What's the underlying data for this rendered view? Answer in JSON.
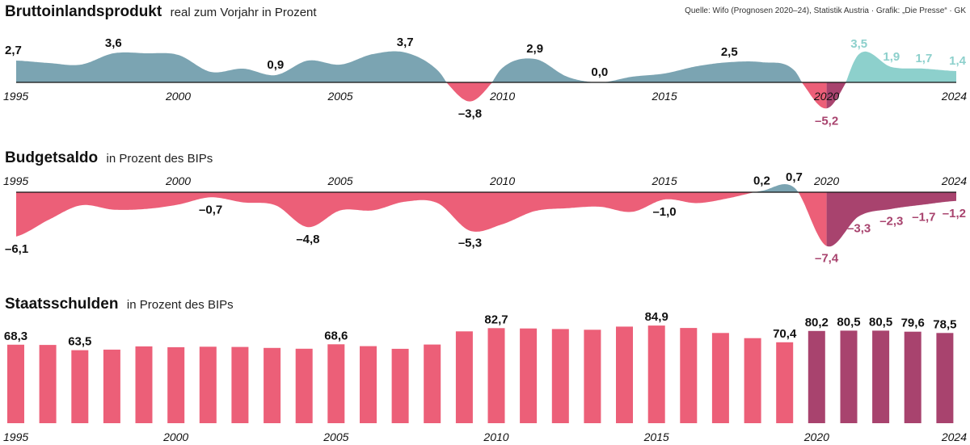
{
  "source": "Quelle: Wifo (Prognosen 2020–24), Statistik Austria · Grafik: „Die Presse“ · GK",
  "colors": {
    "gdp_positive": "#7ba4b2",
    "gdp_negative": "#ec5f78",
    "forecast_positive": "#8dd0cc",
    "forecast_negative": "#a8436e",
    "debt_bar": "#ec5f78",
    "debt_forecast": "#a8436e",
    "axis": "#111111"
  },
  "chart_data": [
    {
      "type": "area",
      "title": "Bruttoinlandsprodukt",
      "subtitle": "real zum Vorjahr in Prozent",
      "xlim": [
        1995,
        2024
      ],
      "ylim": [
        -5.8,
        3.8
      ],
      "xticks": [
        "1995",
        "2000",
        "2005",
        "2010",
        "2015",
        "2020",
        "2024"
      ],
      "forecast_from": 2020,
      "x": [
        1995,
        1996,
        1997,
        1998,
        1999,
        2000,
        2001,
        2002,
        2003,
        2004,
        2005,
        2006,
        2007,
        2008,
        2009,
        2010,
        2011,
        2012,
        2013,
        2014,
        2015,
        2016,
        2017,
        2018,
        2019,
        2020,
        2021,
        2022,
        2023,
        2024
      ],
      "y": [
        2.7,
        2.4,
        2.2,
        3.6,
        3.6,
        3.4,
        1.3,
        1.7,
        0.9,
        2.7,
        2.2,
        3.5,
        3.7,
        1.5,
        -3.8,
        1.8,
        2.9,
        0.7,
        0.0,
        0.7,
        1.1,
        2.0,
        2.5,
        2.5,
        1.5,
        -5.2,
        3.5,
        1.9,
        1.7,
        1.4
      ],
      "point_labels": [
        {
          "x": 1995,
          "y": 2.7,
          "text": "2,7"
        },
        {
          "x": 1998,
          "y": 3.6,
          "text": "3,6"
        },
        {
          "x": 2003,
          "y": 0.9,
          "text": "0,9"
        },
        {
          "x": 2007,
          "y": 3.7,
          "text": "3,7"
        },
        {
          "x": 2009,
          "y": -3.8,
          "text": "–3,8"
        },
        {
          "x": 2011,
          "y": 2.9,
          "text": "2,9"
        },
        {
          "x": 2013,
          "y": 0.0,
          "text": "0,0"
        },
        {
          "x": 2017,
          "y": 2.5,
          "text": "2,5"
        },
        {
          "x": 2020,
          "y": -5.2,
          "text": "–5,2"
        },
        {
          "x": 2021,
          "y": 3.5,
          "text": "3,5"
        },
        {
          "x": 2022,
          "y": 1.9,
          "text": "1,9"
        },
        {
          "x": 2023,
          "y": 1.7,
          "text": "1,7"
        },
        {
          "x": 2024,
          "y": 1.4,
          "text": "1,4"
        }
      ]
    },
    {
      "type": "area",
      "title": "Budgetsaldo",
      "subtitle": "in Prozent des BIPs",
      "xlim": [
        1995,
        2024
      ],
      "ylim": [
        -8.0,
        1.2
      ],
      "xticks": [
        "1995",
        "2000",
        "2005",
        "2010",
        "2015",
        "2020",
        "2024"
      ],
      "forecast_from": 2020,
      "x": [
        1995,
        1996,
        1997,
        1998,
        1999,
        2000,
        2001,
        2002,
        2003,
        2004,
        2005,
        2006,
        2007,
        2008,
        2009,
        2010,
        2011,
        2012,
        2013,
        2014,
        2015,
        2016,
        2017,
        2018,
        2019,
        2020,
        2021,
        2022,
        2023,
        2024
      ],
      "y": [
        -6.1,
        -3.8,
        -1.8,
        -2.4,
        -2.3,
        -1.7,
        -0.7,
        -1.4,
        -1.8,
        -4.8,
        -2.5,
        -2.5,
        -1.3,
        -1.5,
        -5.3,
        -4.4,
        -2.6,
        -2.2,
        -2.0,
        -2.7,
        -1.0,
        -1.5,
        -0.8,
        0.2,
        0.7,
        -7.4,
        -3.3,
        -2.3,
        -1.7,
        -1.2
      ],
      "point_labels": [
        {
          "x": 1995,
          "y": -6.1,
          "text": "–6,1"
        },
        {
          "x": 2001,
          "y": -0.7,
          "text": "–0,7"
        },
        {
          "x": 2004,
          "y": -4.8,
          "text": "–4,8"
        },
        {
          "x": 2009,
          "y": -5.3,
          "text": "–5,3"
        },
        {
          "x": 2015,
          "y": -1.0,
          "text": "–1,0"
        },
        {
          "x": 2018,
          "y": 0.2,
          "text": "0,2"
        },
        {
          "x": 2019,
          "y": 0.7,
          "text": "0,7"
        },
        {
          "x": 2020,
          "y": -7.4,
          "text": "–7,4"
        },
        {
          "x": 2021,
          "y": -3.3,
          "text": "–3,3"
        },
        {
          "x": 2022,
          "y": -2.3,
          "text": "–2,3"
        },
        {
          "x": 2023,
          "y": -1.7,
          "text": "–1,7"
        },
        {
          "x": 2024,
          "y": -1.2,
          "text": "–1,2"
        }
      ]
    },
    {
      "type": "bar",
      "title": "Staatsschulden",
      "subtitle": "in Prozent des BIPs",
      "ylim": [
        0,
        85
      ],
      "xticks": [
        "1995",
        "2000",
        "2005",
        "2010",
        "2015",
        "2020",
        "2024"
      ],
      "forecast_from": 2020,
      "categories": [
        "1995",
        "1996",
        "1997",
        "1998",
        "1999",
        "2000",
        "2001",
        "2002",
        "2003",
        "2004",
        "2005",
        "2006",
        "2007",
        "2008",
        "2009",
        "2010",
        "2011",
        "2012",
        "2013",
        "2014",
        "2015",
        "2016",
        "2017",
        "2018",
        "2019",
        "2020",
        "2021",
        "2022",
        "2023",
        "2024"
      ],
      "values": [
        68.3,
        68.1,
        63.5,
        64.0,
        66.8,
        66.1,
        66.5,
        66.3,
        65.5,
        64.8,
        68.6,
        67.0,
        64.7,
        68.4,
        79.9,
        82.7,
        82.4,
        81.9,
        81.3,
        84.0,
        84.9,
        82.8,
        78.5,
        74.0,
        70.4,
        80.2,
        80.5,
        80.5,
        79.6,
        78.5
      ],
      "value_labels": [
        {
          "x": "1995",
          "text": "68,3"
        },
        {
          "x": "1997",
          "text": "63,5"
        },
        {
          "x": "2005",
          "text": "68,6"
        },
        {
          "x": "2010",
          "text": "82,7"
        },
        {
          "x": "2015",
          "text": "84,9"
        },
        {
          "x": "2019",
          "text": "70,4"
        },
        {
          "x": "2020",
          "text": "80,2"
        },
        {
          "x": "2021",
          "text": "80,5"
        },
        {
          "x": "2022",
          "text": "80,5"
        },
        {
          "x": "2023",
          "text": "79,6"
        },
        {
          "x": "2024",
          "text": "78,5"
        }
      ]
    }
  ]
}
